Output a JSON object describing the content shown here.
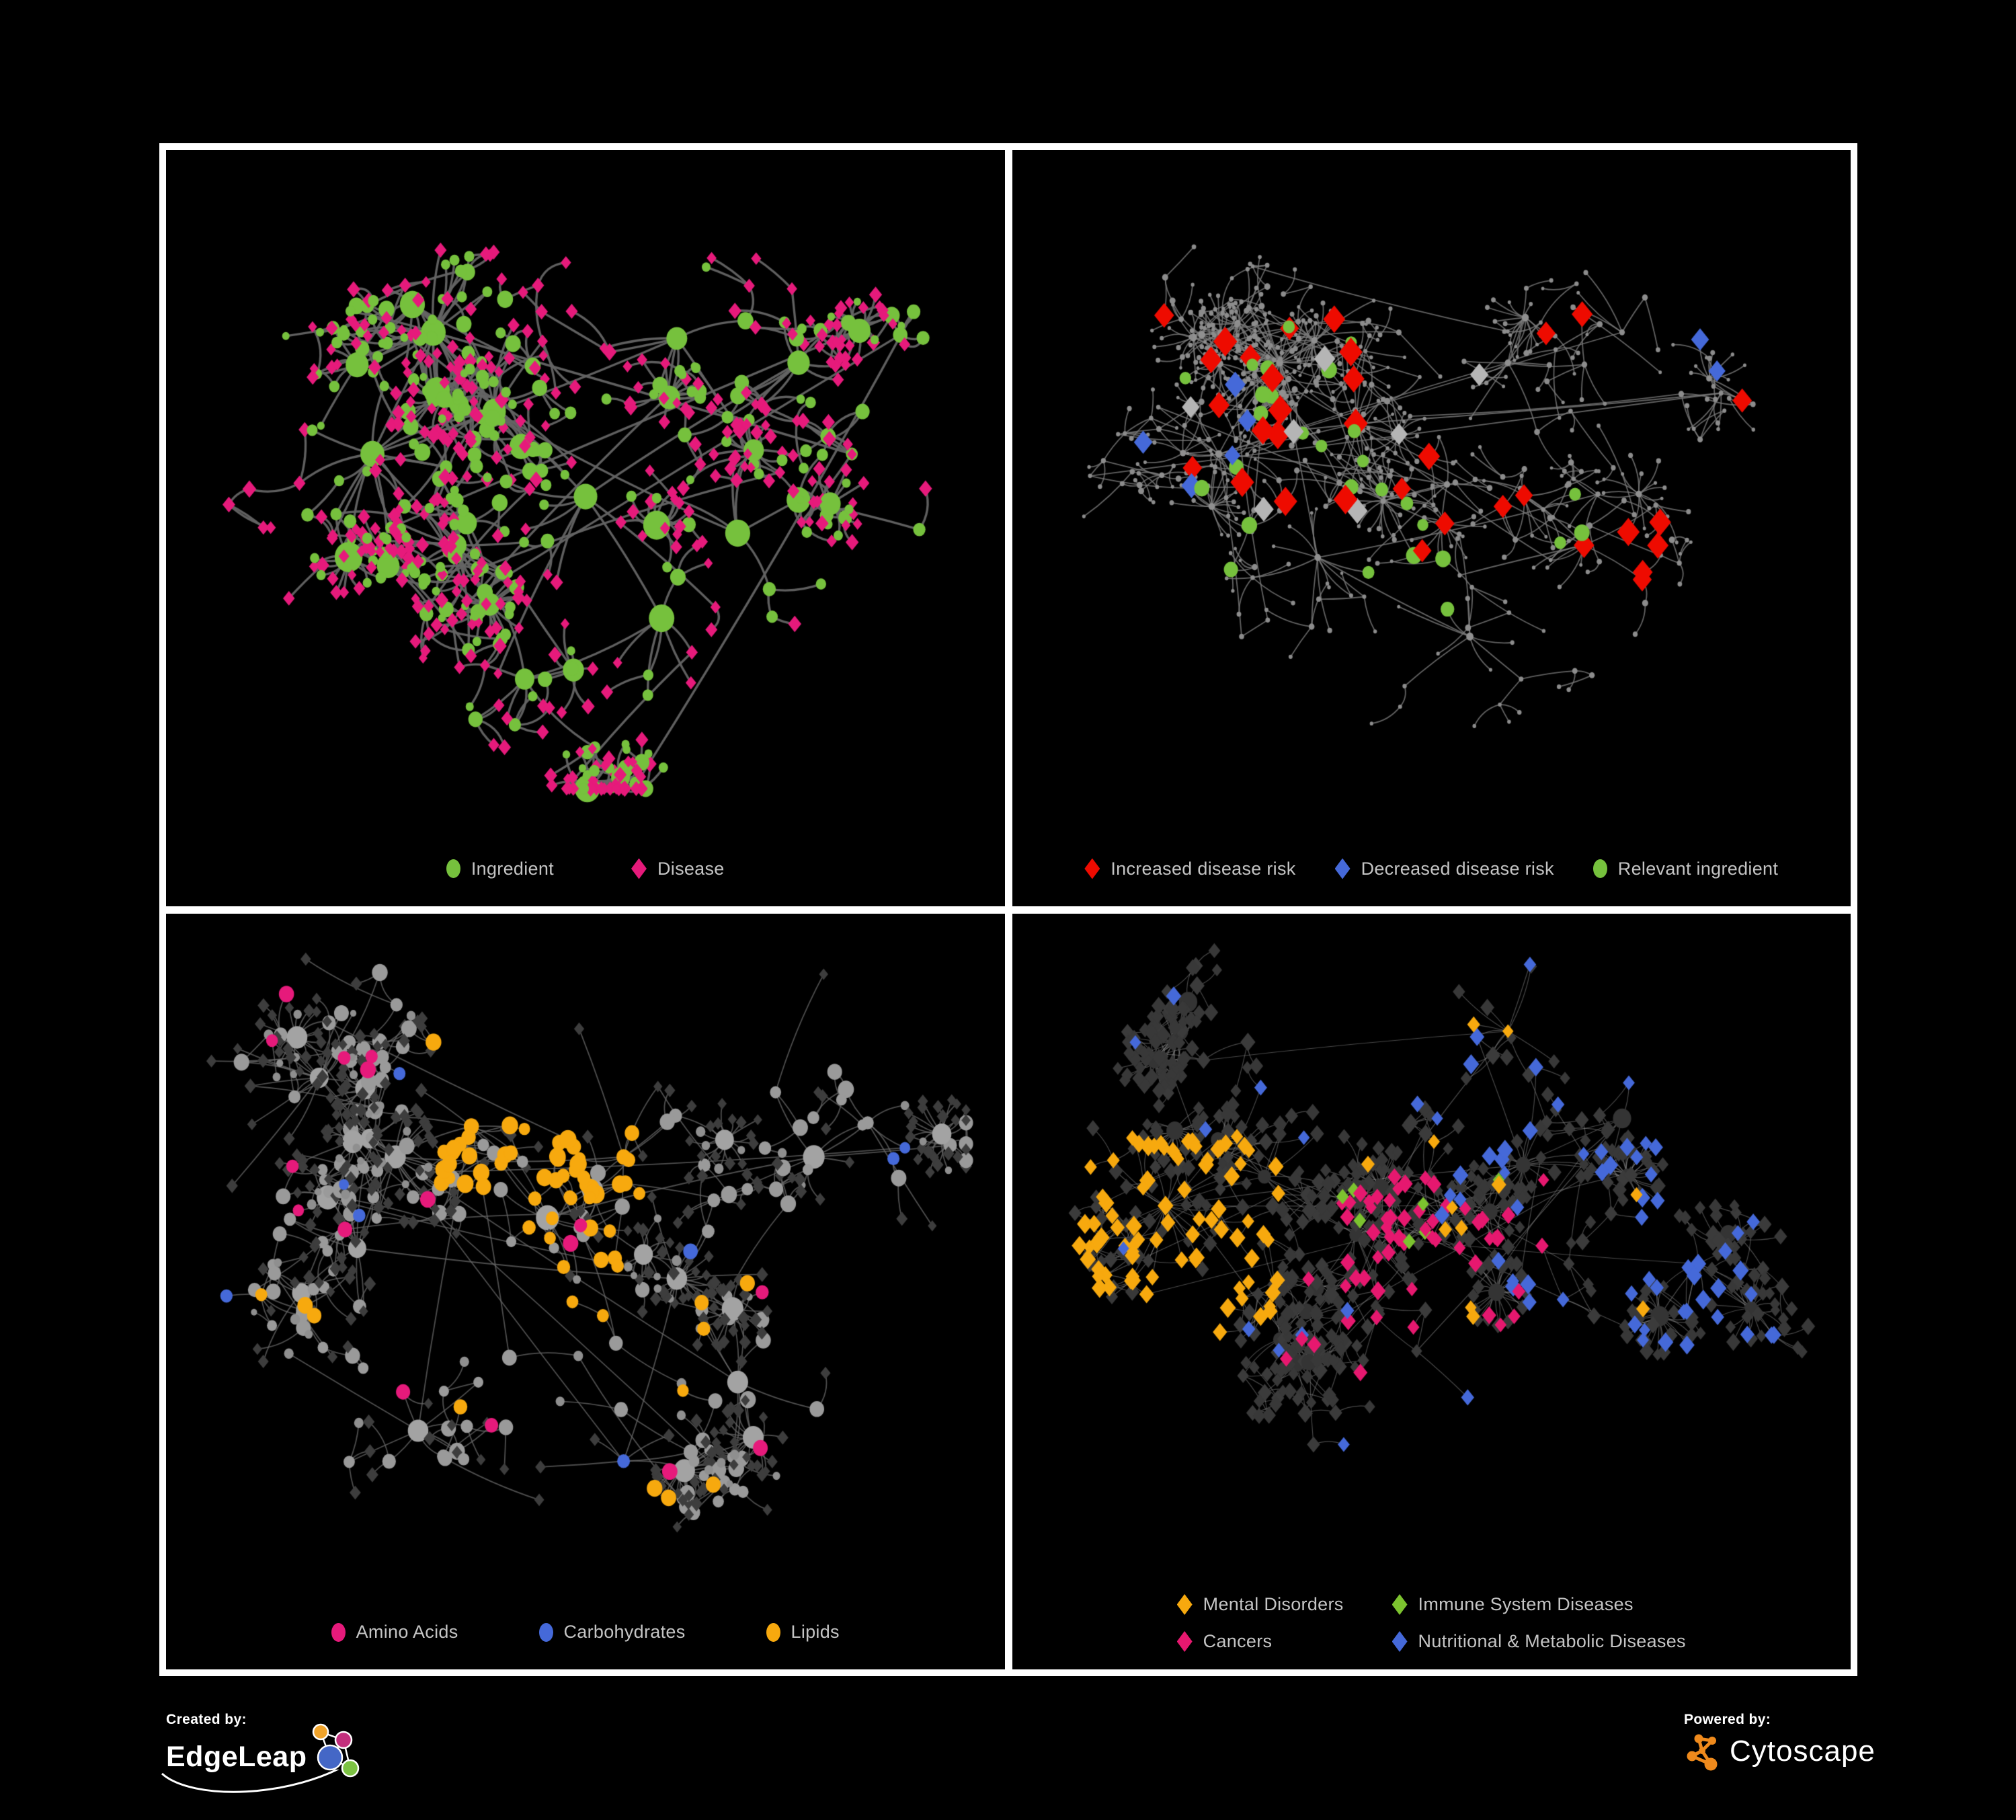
{
  "page": {
    "background": "#000000",
    "frame_color": "#ffffff"
  },
  "footer": {
    "created_by_label": "Created by:",
    "created_by_name": "EdgeLeap",
    "powered_by_label": "Powered by:",
    "powered_by_name": "Cytoscape"
  },
  "colors": {
    "green": "#76C13D",
    "pink": "#E61A7B",
    "red": "#EE0B00",
    "blue": "#4569D9",
    "orange": "#F7A90E",
    "silver": "#B5B5B5",
    "gray_node": "#9A9A9A",
    "dark_diamond": "#383838",
    "legend_text": "#C4C4C4",
    "cytoscape_orange": "#EF8A1C",
    "edgeleap_orange": "#F0A32A",
    "edgeleap_magenta": "#C22E7C",
    "edgeleap_blue": "#4467C6",
    "edgeleap_green": "#7CC243"
  },
  "panels": [
    {
      "id": "ingredient-disease",
      "legend": [
        {
          "label": "Ingredient",
          "shape": "ellipse",
          "color": "#76C13D"
        },
        {
          "label": "Disease",
          "shape": "diamond",
          "color": "#E61A7B"
        }
      ],
      "network": {
        "seed": 101,
        "node_count": 520,
        "bursts": 10,
        "burst_leaves": [
          8,
          22
        ],
        "step": 46,
        "long_links": 10,
        "bottom_margin": 175,
        "clusters": [
          [
            0.3,
            0.25
          ],
          [
            0.22,
            0.45
          ],
          [
            0.38,
            0.38
          ],
          [
            0.33,
            0.6
          ],
          [
            0.5,
            0.52
          ],
          [
            0.62,
            0.26
          ],
          [
            0.78,
            0.3
          ],
          [
            0.6,
            0.72
          ],
          [
            0.42,
            0.82
          ],
          [
            0.7,
            0.58
          ],
          [
            0.85,
            0.45
          ]
        ],
        "edge": {
          "color": "#646464",
          "width": 3.4,
          "alpha": 0.95,
          "curve": 18
        },
        "style": {
          "leaf": [
            [
              "diamond",
              "#E61A7B",
              [
                8,
                12
              ],
              0.74
            ],
            [
              "ellipse",
              "#76C13D",
              [
                6,
                9
              ],
              0.26
            ]
          ],
          "internal": [
            [
              "ellipse",
              "#76C13D",
              [
                8,
                13
              ],
              0.62
            ],
            [
              "diamond",
              "#E61A7B",
              [
                9,
                13
              ],
              0.38
            ]
          ],
          "hub": {
            "shape": "ellipse",
            "color": "#76C13D",
            "min": 6,
            "size": [
              15,
              23
            ]
          }
        },
        "specials": []
      }
    },
    {
      "id": "disease-risk",
      "legend": [
        {
          "label": "Increased disease risk",
          "shape": "diamond",
          "color": "#EE0B00"
        },
        {
          "label": "Decreased disease risk",
          "shape": "diamond",
          "color": "#4569D9"
        },
        {
          "label": "Relevant ingredient",
          "shape": "ellipse",
          "color": "#76C13D"
        }
      ],
      "network": {
        "seed": 202,
        "node_count": 560,
        "bursts": 12,
        "burst_leaves": [
          8,
          20
        ],
        "step": 42,
        "long_links": 14,
        "bottom_margin": 175,
        "clusters": [
          [
            0.3,
            0.3
          ],
          [
            0.22,
            0.45
          ],
          [
            0.4,
            0.4
          ],
          [
            0.35,
            0.62
          ],
          [
            0.52,
            0.5
          ],
          [
            0.6,
            0.3
          ],
          [
            0.75,
            0.25
          ],
          [
            0.55,
            0.75
          ],
          [
            0.7,
            0.6
          ],
          [
            0.88,
            0.35
          ],
          [
            0.25,
            0.75
          ]
        ],
        "edge": {
          "color": "#7B7B7B",
          "width": 1.8,
          "alpha": 0.8,
          "curve": 12
        },
        "style": {
          "leaf": [
            [
              "ellipse",
              "#8C8C8C",
              [
                2.5,
                4
              ],
              1.0
            ]
          ],
          "internal": [
            [
              "ellipse",
              "#8C8C8C",
              [
                3,
                5
              ],
              1.0
            ]
          ],
          "hub": {
            "shape": "ellipse",
            "color": "#909090",
            "min": 7,
            "size": [
              4,
              6
            ]
          }
        },
        "specials": [
          {
            "count": 30,
            "shape": "diamond",
            "color": "#EE0B00",
            "size": [
              16,
              22
            ],
            "region": [
              0.1,
              0.2,
              0.8,
              0.75
            ]
          },
          {
            "count": 3,
            "shape": "diamond",
            "color": "#EE0B00",
            "size": [
              16,
              20
            ],
            "region": [
              0.75,
              0.1,
              0.95,
              0.7
            ]
          },
          {
            "count": 7,
            "shape": "diamond",
            "color": "#B5B5B5",
            "size": [
              15,
              20
            ],
            "region": [
              0.05,
              0.28,
              0.6,
              0.62
            ]
          },
          {
            "count": 5,
            "shape": "diamond",
            "color": "#4569D9",
            "size": [
              14,
              19
            ],
            "region": [
              0.08,
              0.33,
              0.26,
              0.55
            ]
          },
          {
            "count": 2,
            "shape": "diamond",
            "color": "#4569D9",
            "size": [
              15,
              19
            ],
            "region": [
              0.85,
              0.24,
              0.96,
              0.33
            ]
          },
          {
            "count": 28,
            "shape": "ellipse",
            "color": "#76C13D",
            "size": [
              9,
              13
            ],
            "region": [
              0.1,
              0.2,
              0.75,
              0.72
            ]
          }
        ]
      }
    },
    {
      "id": "nutrient-classes",
      "legend": [
        {
          "label": "Amino Acids",
          "shape": "ellipse",
          "color": "#E61A7B"
        },
        {
          "label": "Carbohydrates",
          "shape": "ellipse",
          "color": "#4569D9"
        },
        {
          "label": "Lipids",
          "shape": "ellipse",
          "color": "#F7A90E"
        }
      ],
      "network": {
        "seed": 303,
        "node_count": 480,
        "bursts": 11,
        "burst_leaves": [
          10,
          24
        ],
        "step": 44,
        "long_links": 10,
        "bottom_margin": 175,
        "clusters": [
          [
            0.15,
            0.22
          ],
          [
            0.25,
            0.35
          ],
          [
            0.35,
            0.3
          ],
          [
            0.2,
            0.5
          ],
          [
            0.45,
            0.45
          ],
          [
            0.55,
            0.35
          ],
          [
            0.62,
            0.55
          ],
          [
            0.4,
            0.68
          ],
          [
            0.28,
            0.8
          ],
          [
            0.7,
            0.72
          ],
          [
            0.8,
            0.35
          ],
          [
            0.55,
            0.85
          ]
        ],
        "edge": {
          "color": "#686868",
          "width": 1.8,
          "alpha": 0.75,
          "curve": 14
        },
        "style": {
          "leaf": [
            [
              "diamond",
              "#3D3D3D",
              [
                8,
                11
              ],
              0.9
            ],
            [
              "ellipse",
              "#8F8F8F",
              [
                5,
                8
              ],
              0.1
            ]
          ],
          "internal": [
            [
              "ellipse",
              "#9A9A9A",
              [
                8,
                13
              ],
              1.0
            ]
          ],
          "hub": {
            "shape": "ellipse",
            "color": "#A3A3A3",
            "min": 6,
            "size": [
              14,
              19
            ]
          }
        },
        "specials": [
          {
            "count": 48,
            "shape": "ellipse",
            "color": "#F7A90E",
            "size": [
              9,
              14
            ],
            "region": [
              0.3,
              0.12,
              0.58,
              0.42
            ]
          },
          {
            "count": 10,
            "shape": "ellipse",
            "color": "#F7A90E",
            "size": [
              9,
              13
            ],
            "region": [
              0.25,
              0.45,
              0.55,
              0.65
            ]
          },
          {
            "count": 12,
            "shape": "ellipse",
            "color": "#F7A90E",
            "size": [
              9,
              13
            ],
            "region": [
              0.05,
              0.55,
              0.95,
              0.95
            ]
          },
          {
            "count": 16,
            "shape": "ellipse",
            "color": "#E61A7B",
            "size": [
              9,
              13
            ],
            "region": [
              0.02,
              0.02,
              0.98,
              0.95
            ]
          },
          {
            "count": 8,
            "shape": "ellipse",
            "color": "#4569D9",
            "size": [
              8,
              12
            ],
            "region": [
              0.02,
              0.1,
              0.98,
              0.9
            ]
          }
        ]
      }
    },
    {
      "id": "disease-classes",
      "legend": [
        {
          "label": "Mental Disorders",
          "shape": "diamond",
          "color": "#F7A90E"
        },
        {
          "label": "Immune System Diseases",
          "shape": "diamond",
          "color": "#7CC32F"
        },
        {
          "label": "Cancers",
          "shape": "diamond",
          "color": "#E6186F"
        },
        {
          "label": "Nutritional & Metabolic Diseases",
          "shape": "diamond",
          "color": "#4569D9"
        }
      ],
      "network": {
        "seed": 404,
        "node_count": 560,
        "bursts": 14,
        "burst_leaves": [
          10,
          26
        ],
        "step": 40,
        "long_links": 12,
        "bottom_margin": 215,
        "clusters": [
          [
            0.15,
            0.45
          ],
          [
            0.28,
            0.4
          ],
          [
            0.4,
            0.5
          ],
          [
            0.52,
            0.45
          ],
          [
            0.62,
            0.38
          ],
          [
            0.75,
            0.3
          ],
          [
            0.68,
            0.55
          ],
          [
            0.48,
            0.7
          ],
          [
            0.3,
            0.68
          ],
          [
            0.85,
            0.55
          ],
          [
            0.6,
            0.15
          ],
          [
            0.2,
            0.2
          ]
        ],
        "edge": {
          "color": "#8F8F8F",
          "width": 1.2,
          "alpha": 0.5,
          "curve": 10
        },
        "style": {
          "leaf": [
            [
              "diamond",
              "#383838",
              [
                9,
                13
              ],
              1.0
            ]
          ],
          "internal": [
            [
              "diamond",
              "#3B3B3B",
              [
                10,
                14
              ],
              1.0
            ]
          ],
          "hub": {
            "shape": "ellipse",
            "color": "#343434",
            "min": 6,
            "size": [
              10,
              15
            ]
          }
        },
        "specials": [
          {
            "count": 85,
            "shape": "diamond",
            "color": "#F7A90E",
            "size": [
              11,
              15
            ],
            "region": [
              0.03,
              0.33,
              0.3,
              0.72
            ]
          },
          {
            "count": 12,
            "shape": "diamond",
            "color": "#F7A90E",
            "size": [
              10,
              14
            ],
            "region": [
              0.3,
              0.05,
              0.95,
              0.95
            ]
          },
          {
            "count": 50,
            "shape": "diamond",
            "color": "#E6186F",
            "size": [
              10,
              14
            ],
            "region": [
              0.38,
              0.4,
              0.66,
              0.75
            ]
          },
          {
            "count": 7,
            "shape": "diamond",
            "color": "#E6186F",
            "size": [
              10,
              14
            ],
            "region": [
              0.78,
              0.1,
              0.93,
              0.25
            ]
          },
          {
            "count": 8,
            "shape": "diamond",
            "color": "#E6186F",
            "size": [
              10,
              13
            ],
            "region": [
              0.1,
              0.5,
              0.9,
              0.95
            ]
          },
          {
            "count": 60,
            "shape": "diamond",
            "color": "#4569D9",
            "size": [
              10,
              15
            ],
            "region": [
              0.5,
              0.03,
              0.97,
              0.9
            ]
          },
          {
            "count": 12,
            "shape": "diamond",
            "color": "#4569D9",
            "size": [
              10,
              14
            ],
            "region": [
              0.03,
              0.03,
              0.5,
              0.95
            ]
          },
          {
            "count": 7,
            "shape": "diamond",
            "color": "#7CC32F",
            "size": [
              10,
              13
            ],
            "region": [
              0.35,
              0.3,
              0.65,
              0.62
            ]
          }
        ]
      }
    }
  ]
}
